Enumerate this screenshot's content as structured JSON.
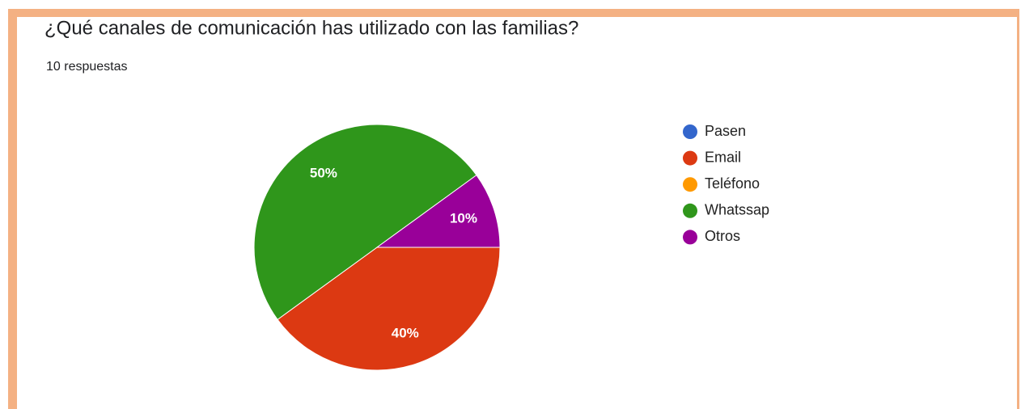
{
  "chart_data": {
    "type": "pie",
    "title": "¿Qué canales de comunicación has utilizado con las familias?",
    "subtitle": "10 respuestas",
    "categories": [
      "Pasen",
      "Email",
      "Teléfono",
      "Whatssap",
      "Otros"
    ],
    "values": [
      0,
      40,
      0,
      50,
      10
    ],
    "value_labels": [
      null,
      "40%",
      null,
      "50%",
      "10%"
    ],
    "colors": [
      "#3366cc",
      "#dc3912",
      "#ff9900",
      "#2f961b",
      "#990099"
    ]
  }
}
